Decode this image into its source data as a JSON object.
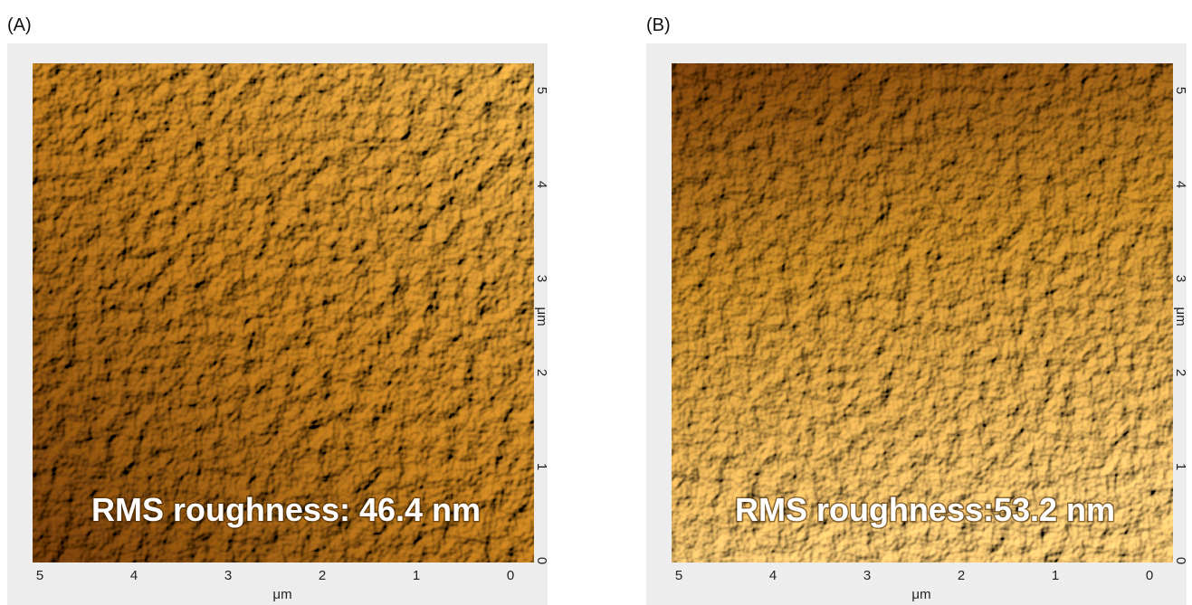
{
  "panels": [
    {
      "label": "(A)",
      "annotation": "RMS roughness: 46.4 nm",
      "x_ticks": [
        5,
        4,
        3,
        2,
        1,
        0
      ],
      "y_ticks": [
        5,
        4,
        3,
        2,
        1,
        0
      ],
      "x_unit": "μm",
      "y_unit": "μm"
    },
    {
      "label": "(B)",
      "annotation": "RMS roughness:53.2 nm",
      "x_ticks": [
        5,
        4,
        3,
        2,
        1,
        0
      ],
      "y_ticks": [
        5,
        4,
        3,
        2,
        1,
        0
      ],
      "x_unit": "μm",
      "y_unit": "μm"
    }
  ]
}
